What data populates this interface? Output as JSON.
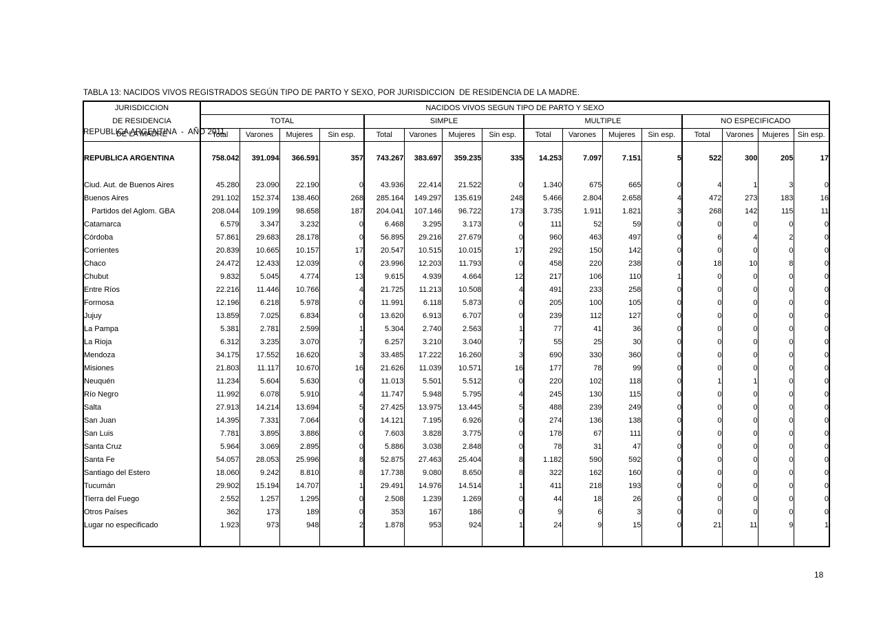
{
  "page": {
    "title_line1": "TABLA 13: NACIDOS VIVOS REGISTRADOS SEGÚN TIPO DE PARTO Y SEXO, POR JURISDICCION  DE RESIDENCIA DE LA MADRE.",
    "title_line2": "REPUBLICA ARGENTINA  -  AÑO 2011",
    "page_number": "18"
  },
  "table": {
    "stub_header_lines": [
      "JURISDICCION",
      "DE RESIDENCIA",
      "DE LA MADRE"
    ],
    "span_header": "NACIDOS VIVOS SEGUN TIPO DE PARTO Y SEXO",
    "groups": [
      {
        "label": "TOTAL",
        "subcols": [
          "Total",
          "Varones",
          "Mujeres",
          "Sin esp."
        ]
      },
      {
        "label": "SIMPLE",
        "subcols": [
          "Total",
          "Varones",
          "Mujeres",
          "Sin esp."
        ]
      },
      {
        "label": "MULTIPLE",
        "subcols": [
          "Total",
          "Varones",
          "Mujeres",
          "Sin esp."
        ]
      },
      {
        "label": "NO ESPECIFICADO",
        "subcols": [
          "Total",
          "Varones",
          "Mujeres",
          "Sin esp."
        ]
      }
    ],
    "rows": [
      {
        "label": "REPUBLICA ARGENTINA",
        "bold": true,
        "values": [
          "758.042",
          "391.094",
          "366.591",
          "357",
          "743.267",
          "383.697",
          "359.235",
          "335",
          "14.253",
          "7.097",
          "7.151",
          "5",
          "522",
          "300",
          "205",
          "17"
        ]
      },
      {
        "label": "Ciud. Aut. de Buenos Aires",
        "values": [
          "45.280",
          "23.090",
          "22.190",
          "0",
          "43.936",
          "22.414",
          "21.522",
          "0",
          "1.340",
          "675",
          "665",
          "0",
          "4",
          "1",
          "3",
          "0"
        ]
      },
      {
        "label": "Buenos Aires",
        "values": [
          "291.102",
          "152.374",
          "138.460",
          "268",
          "285.164",
          "149.297",
          "135.619",
          "248",
          "5.466",
          "2.804",
          "2.658",
          "4",
          "472",
          "273",
          "183",
          "16"
        ]
      },
      {
        "label": "Partidos del Aglom. GBA",
        "indent": true,
        "values": [
          "208.044",
          "109.199",
          "98.658",
          "187",
          "204.041",
          "107.146",
          "96.722",
          "173",
          "3.735",
          "1.911",
          "1.821",
          "3",
          "268",
          "142",
          "115",
          "11"
        ]
      },
      {
        "label": "Catamarca",
        "values": [
          "6.579",
          "3.347",
          "3.232",
          "0",
          "6.468",
          "3.295",
          "3.173",
          "0",
          "111",
          "52",
          "59",
          "0",
          "0",
          "0",
          "0",
          "0"
        ]
      },
      {
        "label": "Córdoba",
        "values": [
          "57.861",
          "29.683",
          "28.178",
          "0",
          "56.895",
          "29.216",
          "27.679",
          "0",
          "960",
          "463",
          "497",
          "0",
          "6",
          "4",
          "2",
          "0"
        ]
      },
      {
        "label": "Corrientes",
        "values": [
          "20.839",
          "10.665",
          "10.157",
          "17",
          "20.547",
          "10.515",
          "10.015",
          "17",
          "292",
          "150",
          "142",
          "0",
          "0",
          "0",
          "0",
          "0"
        ]
      },
      {
        "label": "Chaco",
        "values": [
          "24.472",
          "12.433",
          "12.039",
          "0",
          "23.996",
          "12.203",
          "11.793",
          "0",
          "458",
          "220",
          "238",
          "0",
          "18",
          "10",
          "8",
          "0"
        ]
      },
      {
        "label": "Chubut",
        "values": [
          "9.832",
          "5.045",
          "4.774",
          "13",
          "9.615",
          "4.939",
          "4.664",
          "12",
          "217",
          "106",
          "110",
          "1",
          "0",
          "0",
          "0",
          "0"
        ]
      },
      {
        "label": "Entre Ríos",
        "values": [
          "22.216",
          "11.446",
          "10.766",
          "4",
          "21.725",
          "11.213",
          "10.508",
          "4",
          "491",
          "233",
          "258",
          "0",
          "0",
          "0",
          "0",
          "0"
        ]
      },
      {
        "label": "Formosa",
        "values": [
          "12.196",
          "6.218",
          "5.978",
          "0",
          "11.991",
          "6.118",
          "5.873",
          "0",
          "205",
          "100",
          "105",
          "0",
          "0",
          "0",
          "0",
          "0"
        ]
      },
      {
        "label": "Jujuy",
        "values": [
          "13.859",
          "7.025",
          "6.834",
          "0",
          "13.620",
          "6.913",
          "6.707",
          "0",
          "239",
          "112",
          "127",
          "0",
          "0",
          "0",
          "0",
          "0"
        ]
      },
      {
        "label": "La Pampa",
        "values": [
          "5.381",
          "2.781",
          "2.599",
          "1",
          "5.304",
          "2.740",
          "2.563",
          "1",
          "77",
          "41",
          "36",
          "0",
          "0",
          "0",
          "0",
          "0"
        ]
      },
      {
        "label": "La Rioja",
        "values": [
          "6.312",
          "3.235",
          "3.070",
          "7",
          "6.257",
          "3.210",
          "3.040",
          "7",
          "55",
          "25",
          "30",
          "0",
          "0",
          "0",
          "0",
          "0"
        ]
      },
      {
        "label": "Mendoza",
        "values": [
          "34.175",
          "17.552",
          "16.620",
          "3",
          "33.485",
          "17.222",
          "16.260",
          "3",
          "690",
          "330",
          "360",
          "0",
          "0",
          "0",
          "0",
          "0"
        ]
      },
      {
        "label": "Misiones",
        "values": [
          "21.803",
          "11.117",
          "10.670",
          "16",
          "21.626",
          "11.039",
          "10.571",
          "16",
          "177",
          "78",
          "99",
          "0",
          "0",
          "0",
          "0",
          "0"
        ]
      },
      {
        "label": "Neuquén",
        "values": [
          "11.234",
          "5.604",
          "5.630",
          "0",
          "11.013",
          "5.501",
          "5.512",
          "0",
          "220",
          "102",
          "118",
          "0",
          "1",
          "1",
          "0",
          "0"
        ]
      },
      {
        "label": "Río Negro",
        "values": [
          "11.992",
          "6.078",
          "5.910",
          "4",
          "11.747",
          "5.948",
          "5.795",
          "4",
          "245",
          "130",
          "115",
          "0",
          "0",
          "0",
          "0",
          "0"
        ]
      },
      {
        "label": "Salta",
        "values": [
          "27.913",
          "14.214",
          "13.694",
          "5",
          "27.425",
          "13.975",
          "13.445",
          "5",
          "488",
          "239",
          "249",
          "0",
          "0",
          "0",
          "0",
          "0"
        ]
      },
      {
        "label": "San Juan",
        "values": [
          "14.395",
          "7.331",
          "7.064",
          "0",
          "14.121",
          "7.195",
          "6.926",
          "0",
          "274",
          "136",
          "138",
          "0",
          "0",
          "0",
          "0",
          "0"
        ]
      },
      {
        "label": "San Luis",
        "values": [
          "7.781",
          "3.895",
          "3.886",
          "0",
          "7.603",
          "3.828",
          "3.775",
          "0",
          "178",
          "67",
          "111",
          "0",
          "0",
          "0",
          "0",
          "0"
        ]
      },
      {
        "label": "Santa Cruz",
        "values": [
          "5.964",
          "3.069",
          "2.895",
          "0",
          "5.886",
          "3.038",
          "2.848",
          "0",
          "78",
          "31",
          "47",
          "0",
          "0",
          "0",
          "0",
          "0"
        ]
      },
      {
        "label": "Santa Fe",
        "values": [
          "54.057",
          "28.053",
          "25.996",
          "8",
          "52.875",
          "27.463",
          "25.404",
          "8",
          "1.182",
          "590",
          "592",
          "0",
          "0",
          "0",
          "0",
          "0"
        ]
      },
      {
        "label": "Santiago del Estero",
        "values": [
          "18.060",
          "9.242",
          "8.810",
          "8",
          "17.738",
          "9.080",
          "8.650",
          "8",
          "322",
          "162",
          "160",
          "0",
          "0",
          "0",
          "0",
          "0"
        ]
      },
      {
        "label": "Tucumán",
        "values": [
          "29.902",
          "15.194",
          "14.707",
          "1",
          "29.491",
          "14.976",
          "14.514",
          "1",
          "411",
          "218",
          "193",
          "0",
          "0",
          "0",
          "0",
          "0"
        ]
      },
      {
        "label": "Tierra del Fuego",
        "values": [
          "2.552",
          "1.257",
          "1.295",
          "0",
          "2.508",
          "1.239",
          "1.269",
          "0",
          "44",
          "18",
          "26",
          "0",
          "0",
          "0",
          "0",
          "0"
        ]
      },
      {
        "label": "Otros Países",
        "values": [
          "362",
          "173",
          "189",
          "0",
          "353",
          "167",
          "186",
          "0",
          "9",
          "6",
          "3",
          "0",
          "0",
          "0",
          "0",
          "0"
        ]
      },
      {
        "label": "Lugar no especificado",
        "values": [
          "1.923",
          "973",
          "948",
          "2",
          "1.878",
          "953",
          "924",
          "1",
          "24",
          "9",
          "15",
          "0",
          "21",
          "11",
          "9",
          "1"
        ]
      }
    ]
  }
}
